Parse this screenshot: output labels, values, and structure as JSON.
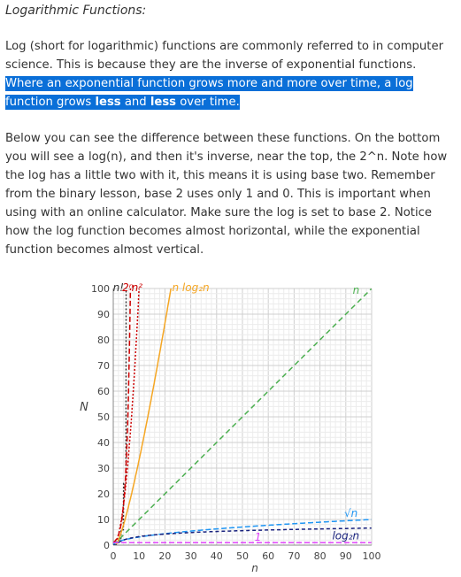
{
  "article": {
    "heading": "Logarithmic Functions:",
    "para1_plain": "Log (short for logarithmic) functions are commonly referred to in computer science. This is because they are the inverse of exponential functions. ",
    "para1_sel_a": "Where an exponential function grows more and more over time, a log function grows ",
    "para1_sel_b1": "less",
    "para1_sel_and": " and ",
    "para1_sel_b2": "less",
    "para1_sel_end": " over time.",
    "para2": "Below you can see the difference between these functions. On the bottom you will see a log(n), and then it's inverse, near the top, the 2^n. Note how the log has a little two with it, this means it is using base two. Remember from the binary lesson, base 2 uses only 1 and 0. This is important when using with an online calculator. Make sure the log is set to base 2.  Notice how the log function becomes almost horizontal, while the exponential function becomes almost vertical."
  },
  "chart_data": {
    "type": "line",
    "xlabel": "n",
    "ylabel": "N",
    "xlim": [
      0,
      100
    ],
    "ylim": [
      0,
      100
    ],
    "xticks": [
      0,
      10,
      20,
      30,
      40,
      50,
      60,
      70,
      80,
      90,
      100
    ],
    "yticks": [
      0,
      10,
      20,
      30,
      40,
      50,
      60,
      70,
      80,
      90,
      100
    ],
    "grid": true,
    "series": [
      {
        "name": "n!",
        "color": "#333333",
        "dash": "2,2",
        "func": "factorial"
      },
      {
        "name": "2ⁿ",
        "color": "#cc0000",
        "dash": "6,3",
        "func": "pow2"
      },
      {
        "name": "n²",
        "color": "#cc0000",
        "dash": "2,2",
        "func": "square"
      },
      {
        "name": "n log₂n",
        "color": "#f5a623",
        "dash": "",
        "func": "nlogn"
      },
      {
        "name": "n",
        "color": "#4caf50",
        "dash": "6,4",
        "func": "linear"
      },
      {
        "name": "√n",
        "color": "#2196f3",
        "dash": "6,3",
        "func": "sqrt"
      },
      {
        "name": "log₂n",
        "color": "#1a237e",
        "dash": "4,3",
        "func": "log2"
      },
      {
        "name": "1",
        "color": "#e040fb",
        "dash": "6,3",
        "func": "const"
      }
    ]
  }
}
